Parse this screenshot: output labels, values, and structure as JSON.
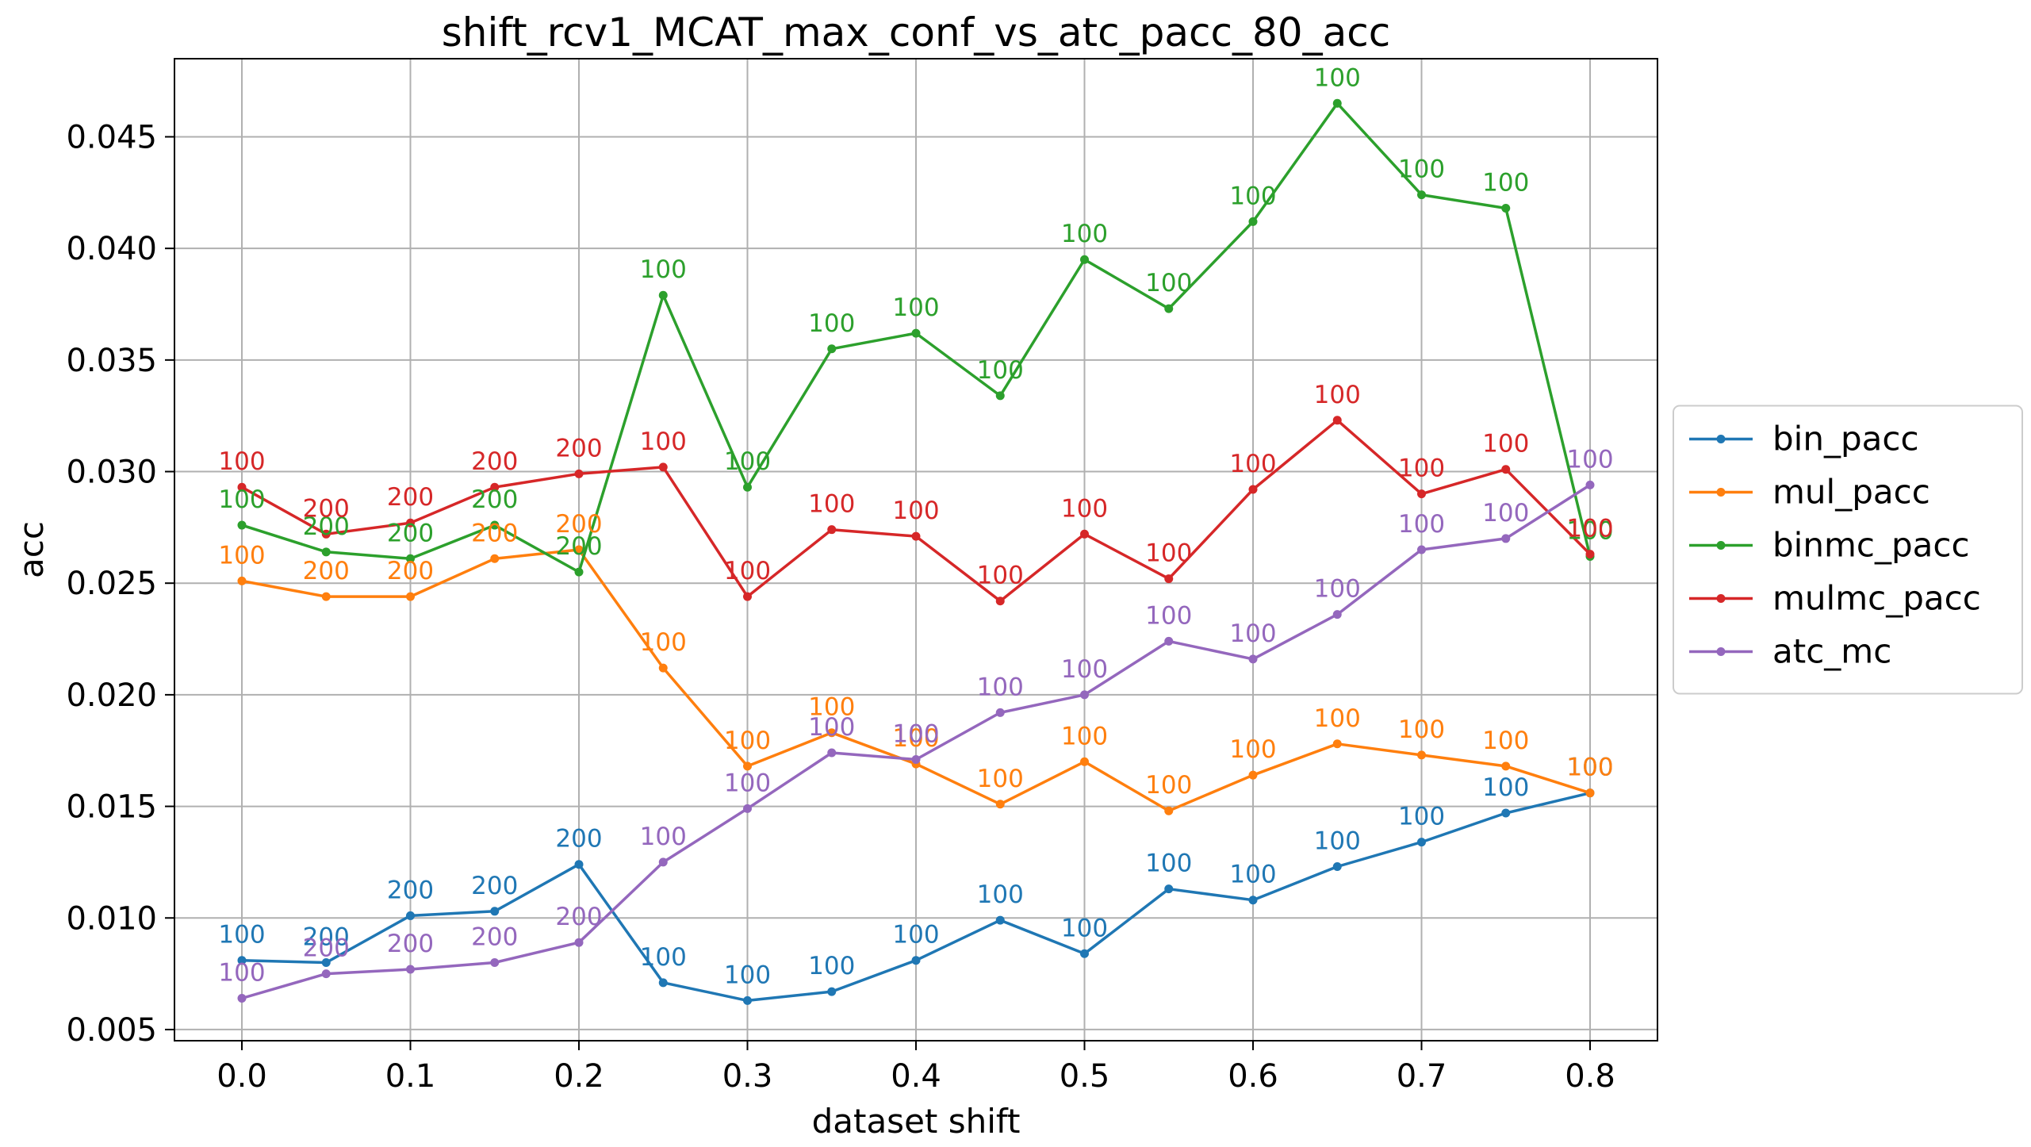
{
  "chart_data": {
    "type": "line",
    "title": "shift_rcv1_MCAT_max_conf_vs_atc_pacc_80_acc",
    "xlabel": "dataset shift",
    "ylabel": "acc",
    "xlim": [
      -0.04,
      0.84
    ],
    "ylim": [
      0.0045,
      0.0485
    ],
    "xticks": [
      0.0,
      0.1,
      0.2,
      0.3,
      0.4,
      0.5,
      0.6,
      0.7,
      0.8
    ],
    "xtick_labels": [
      "0.0",
      "0.1",
      "0.2",
      "0.3",
      "0.4",
      "0.5",
      "0.6",
      "0.7",
      "0.8"
    ],
    "yticks": [
      0.005,
      0.01,
      0.015,
      0.02,
      0.025,
      0.03,
      0.035,
      0.04,
      0.045
    ],
    "ytick_labels": [
      "0.005",
      "0.010",
      "0.015",
      "0.020",
      "0.025",
      "0.030",
      "0.035",
      "0.040",
      "0.045"
    ],
    "grid": true,
    "legend_position": "center-right-outside",
    "x": [
      0.0,
      0.05,
      0.1,
      0.15,
      0.2,
      0.25,
      0.3,
      0.35,
      0.4,
      0.45,
      0.5,
      0.55,
      0.6,
      0.65,
      0.7,
      0.75,
      0.8
    ],
    "series": [
      {
        "name": "bin_pacc",
        "color": "#1f77b4",
        "values": [
          0.0081,
          0.008,
          0.0101,
          0.0103,
          0.0124,
          0.0071,
          0.0063,
          0.0067,
          0.0081,
          0.0099,
          0.0084,
          0.0113,
          0.0108,
          0.0123,
          0.0134,
          0.0147,
          0.0156
        ],
        "labels": [
          "100",
          "200",
          "200",
          "200",
          "200",
          "100",
          "100",
          "100",
          "100",
          "100",
          "100",
          "100",
          "100",
          "100",
          "100",
          "100",
          "100"
        ]
      },
      {
        "name": "mul_pacc",
        "color": "#ff7f0e",
        "values": [
          0.0251,
          0.0244,
          0.0244,
          0.0261,
          0.0265,
          0.0212,
          0.0168,
          0.0183,
          0.0169,
          0.0151,
          0.017,
          0.0148,
          0.0164,
          0.0178,
          0.0173,
          0.0168,
          0.0156
        ],
        "labels": [
          "100",
          "200",
          "200",
          "200",
          "200",
          "100",
          "100",
          "100",
          "100",
          "100",
          "100",
          "100",
          "100",
          "100",
          "100",
          "100",
          "100"
        ]
      },
      {
        "name": "binmc_pacc",
        "color": "#2ca02c",
        "values": [
          0.0276,
          0.0264,
          0.0261,
          0.0276,
          0.0255,
          0.0379,
          0.0293,
          0.0355,
          0.0362,
          0.0334,
          0.0395,
          0.0373,
          0.0412,
          0.0465,
          0.0424,
          0.0418,
          0.0262
        ],
        "labels": [
          "100",
          "200",
          "200",
          "200",
          "200",
          "100",
          "100",
          "100",
          "100",
          "100",
          "100",
          "100",
          "100",
          "100",
          "100",
          "100",
          "100"
        ]
      },
      {
        "name": "mulmc_pacc",
        "color": "#d62728",
        "values": [
          0.0293,
          0.0272,
          0.0277,
          0.0293,
          0.0299,
          0.0302,
          0.0244,
          0.0274,
          0.0271,
          0.0242,
          0.0272,
          0.0252,
          0.0292,
          0.0323,
          0.029,
          0.0301,
          0.0263
        ],
        "labels": [
          "100",
          "200",
          "200",
          "200",
          "200",
          "100",
          "100",
          "100",
          "100",
          "100",
          "100",
          "100",
          "100",
          "100",
          "100",
          "100",
          "100"
        ]
      },
      {
        "name": "atc_mc",
        "color": "#9467bd",
        "values": [
          0.0064,
          0.0075,
          0.0077,
          0.008,
          0.0089,
          0.0125,
          0.0149,
          0.0174,
          0.0171,
          0.0192,
          0.02,
          0.0224,
          0.0216,
          0.0236,
          0.0265,
          0.027,
          0.0294
        ],
        "labels": [
          "100",
          "200",
          "200",
          "200",
          "200",
          "100",
          "100",
          "100",
          "100",
          "100",
          "100",
          "100",
          "100",
          "100",
          "100",
          "100",
          "100"
        ]
      }
    ]
  }
}
